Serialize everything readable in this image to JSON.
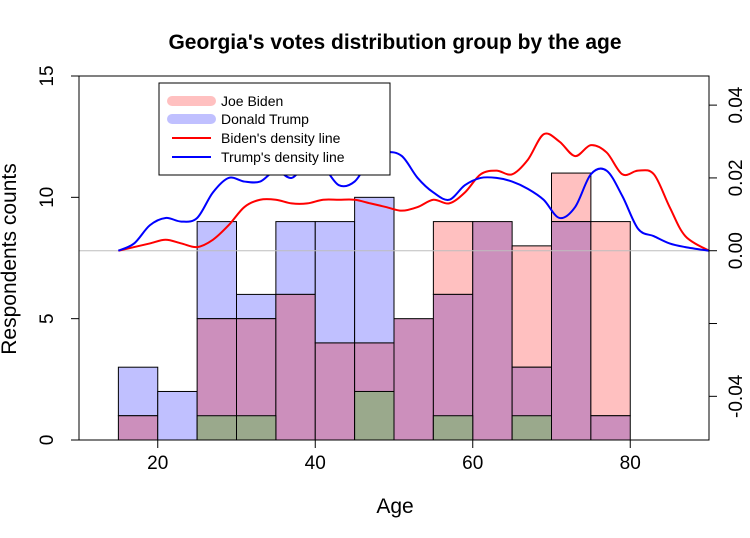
{
  "chart_data": {
    "type": "bar",
    "title": "Georgia's votes distribution group by the age",
    "xlabel": "Age",
    "ylabel": "Respondents counts",
    "xlim": [
      10,
      90
    ],
    "ylim": [
      0,
      15
    ],
    "x_ticks": [
      20,
      40,
      60,
      80
    ],
    "y_ticks": [
      0,
      5,
      10,
      15
    ],
    "y2lim": [
      -0.052,
      0.048
    ],
    "y2_ticks": [
      "-0.04",
      "",
      "0.00",
      "0.02",
      "0.04"
    ],
    "y2_tick_values": [
      -0.04,
      -0.02,
      0.0,
      0.02,
      0.04
    ],
    "bin_edges": [
      15,
      20,
      25,
      30,
      35,
      40,
      45,
      50,
      55,
      60,
      65,
      70,
      75,
      80,
      85,
      90
    ],
    "series": [
      {
        "name": "Joe Biden",
        "kind": "histogram",
        "color": "#ffc0c0",
        "values": [
          1,
          0,
          5,
          5,
          6,
          4,
          4,
          5,
          9,
          9,
          8,
          11,
          9,
          0,
          0
        ]
      },
      {
        "name": "Donald Trump",
        "kind": "histogram",
        "color": "#c0c0ff",
        "values": [
          3,
          2,
          9,
          6,
          9,
          9,
          10,
          5,
          6,
          9,
          3,
          9,
          1,
          0,
          0
        ]
      },
      {
        "name": "Biden's density line",
        "kind": "line",
        "color": "#ff0000",
        "x": [
          15,
          17,
          19,
          21,
          23,
          25,
          27,
          29,
          31,
          33,
          35,
          37,
          39,
          41,
          43,
          45,
          47,
          49,
          51,
          53,
          55,
          57,
          59,
          61,
          63,
          65,
          67,
          69,
          71,
          73,
          75,
          77,
          79,
          81,
          83,
          85,
          87,
          90
        ],
        "y": [
          0.0,
          0.001,
          0.002,
          0.003,
          0.002,
          0.001,
          0.003,
          0.007,
          0.012,
          0.014,
          0.014,
          0.013,
          0.013,
          0.014,
          0.014,
          0.014,
          0.013,
          0.012,
          0.011,
          0.012,
          0.014,
          0.013,
          0.016,
          0.021,
          0.022,
          0.021,
          0.025,
          0.032,
          0.03,
          0.026,
          0.029,
          0.027,
          0.021,
          0.022,
          0.021,
          0.012,
          0.004,
          0.0
        ]
      },
      {
        "name": "Trump's density line",
        "kind": "line",
        "color": "#0000ff",
        "x": [
          15,
          17,
          19,
          21,
          23,
          25,
          27,
          29,
          31,
          33,
          35,
          37,
          39,
          41,
          43,
          45,
          47,
          49,
          51,
          53,
          55,
          57,
          59,
          61,
          63,
          65,
          67,
          69,
          71,
          73,
          75,
          77,
          79,
          81,
          83,
          85,
          87,
          90
        ],
        "y": [
          0.0,
          0.002,
          0.007,
          0.009,
          0.008,
          0.009,
          0.016,
          0.02,
          0.019,
          0.019,
          0.022,
          0.02,
          0.024,
          0.023,
          0.018,
          0.019,
          0.025,
          0.027,
          0.026,
          0.02,
          0.016,
          0.014,
          0.018,
          0.02,
          0.02,
          0.019,
          0.017,
          0.014,
          0.009,
          0.012,
          0.021,
          0.022,
          0.015,
          0.006,
          0.004,
          0.002,
          0.001,
          0.0
        ]
      }
    ],
    "overlap_color": "#cc8fbc",
    "grey_overlap_color": "#9aa98c",
    "grey_overlap_bins": [
      2,
      3,
      6,
      8,
      10
    ],
    "grey_overlap_values": [
      1,
      1,
      2,
      1,
      1
    ],
    "legend": {
      "position": "top-left",
      "entries": [
        "Joe Biden",
        "Donald Trump",
        "Biden's density line",
        "Trump's density line"
      ]
    },
    "grid": false
  }
}
